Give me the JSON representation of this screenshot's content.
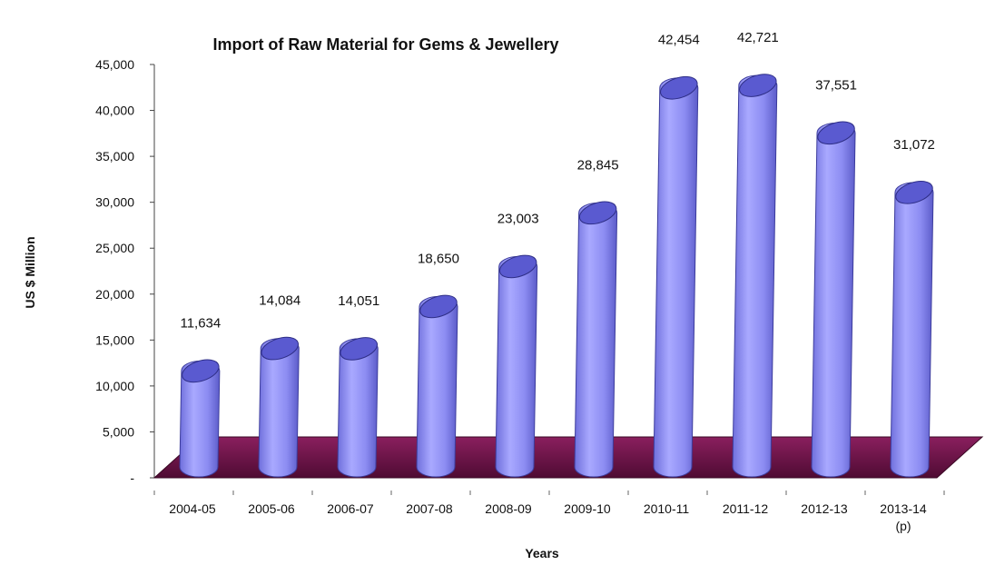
{
  "chart_data": {
    "type": "bar",
    "title": "Import of Raw Material for Gems & Jewellery",
    "xlabel": "Years",
    "ylabel": "US $ Million",
    "categories": [
      "2004-05",
      "2005-06",
      "2006-07",
      "2007-08",
      "2008-09",
      "2009-10",
      "2010-11",
      "2011-12",
      "2012-13",
      "2013-14"
    ],
    "category_notes": [
      "",
      "",
      "",
      "",
      "",
      "",
      "",
      "",
      "",
      "(p)"
    ],
    "values": [
      11634,
      14084,
      14051,
      18650,
      23003,
      28845,
      42454,
      42721,
      37551,
      31072
    ],
    "value_labels": [
      "11,634",
      "14,084",
      "14,051",
      "18,650",
      "23,003",
      "28,845",
      "42,454",
      "42,721",
      "37,551",
      "31,072"
    ],
    "yticks": [
      0,
      5000,
      10000,
      15000,
      20000,
      25000,
      30000,
      35000,
      40000,
      45000
    ],
    "ytick_labels": [
      "-",
      "5,000",
      "10,000",
      "15,000",
      "20,000",
      "25,000",
      "30,000",
      "35,000",
      "40,000",
      "45,000"
    ],
    "ylim": [
      0,
      45000
    ],
    "grid": false,
    "legend": "none",
    "style": "3d-cylinder",
    "colors": {
      "bar": "#8f8ff0",
      "bar_dark": "#5a5ad0",
      "bar_light": "#c4c4ff",
      "floor": "#6e1248"
    }
  }
}
